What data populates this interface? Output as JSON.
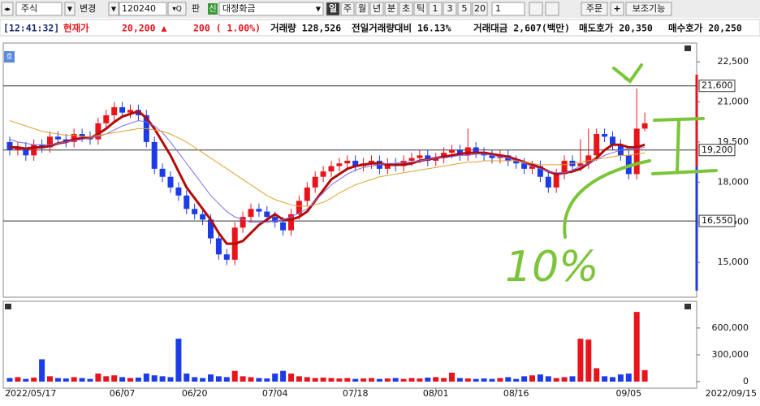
{
  "toolbar": {
    "market": "주식",
    "change": "변경",
    "code": "120240",
    "pan": "판",
    "sin": "신",
    "name": "대정화금",
    "periods": [
      "일",
      "주",
      "월",
      "년",
      "분",
      "초",
      "틱",
      "1",
      "3",
      "5",
      "20"
    ],
    "count": "1",
    "order": "주문",
    "aux": "보조기능"
  },
  "info": {
    "time": "[12:41:32]",
    "price_label": "현재가",
    "price": "20,200 ▲",
    "change": "200 ( 1.00%)",
    "volume": "거래량 128,526",
    "vol_ratio": "전일거래량대비 16.13%",
    "amount": "거래대금 2,607(백만)",
    "ask": "매도호가 20,350",
    "bid": "매수호가 20,250"
  },
  "chart_data": {
    "type": "candlestick",
    "up_color": "#e8141c",
    "down_color": "#1b3ce8",
    "categories": [
      "2022/05/17",
      null,
      null,
      null,
      null,
      null,
      null,
      null,
      null,
      null,
      null,
      null,
      null,
      null,
      "06/07",
      null,
      null,
      null,
      null,
      null,
      null,
      null,
      null,
      "06/20",
      null,
      null,
      null,
      null,
      null,
      null,
      null,
      null,
      null,
      "07/04",
      null,
      null,
      null,
      null,
      null,
      null,
      null,
      null,
      null,
      "07/18",
      null,
      null,
      null,
      null,
      null,
      null,
      null,
      null,
      null,
      "08/01",
      null,
      null,
      null,
      null,
      null,
      null,
      null,
      null,
      null,
      "08/16",
      null,
      null,
      null,
      null,
      null,
      null,
      null,
      null,
      null,
      null,
      null,
      null,
      null,
      "09/05",
      null,
      null
    ],
    "x_end_label": "2022/09/15",
    "open": [
      19500,
      19200,
      19300,
      19000,
      19400,
      19300,
      19700,
      19600,
      19500,
      19800,
      19700,
      19600,
      20200,
      20500,
      20800,
      20600,
      20700,
      20500,
      19500,
      18500,
      18200,
      17800,
      17500,
      17000,
      16800,
      16600,
      15900,
      15300,
      15100,
      16300,
      16700,
      17000,
      16900,
      16700,
      16500,
      16200,
      16800,
      17300,
      17800,
      18200,
      18400,
      18600,
      18700,
      18800,
      18600,
      18700,
      18800,
      18500,
      18700,
      18600,
      18800,
      18900,
      19000,
      18800,
      18900,
      19100,
      19200,
      19000,
      19300,
      19100,
      19000,
      18900,
      19000,
      18800,
      18700,
      18500,
      18600,
      18200,
      17800,
      18300,
      18800,
      18600,
      18700,
      19000,
      19800,
      19700,
      19400,
      19000,
      18300,
      20000
    ],
    "high": [
      19700,
      19500,
      19500,
      19600,
      19600,
      19900,
      19900,
      19800,
      20000,
      20000,
      19900,
      20400,
      20700,
      21000,
      21000,
      20900,
      20900,
      20700,
      19700,
      18700,
      18400,
      18000,
      17700,
      17200,
      17000,
      16800,
      16100,
      15500,
      16500,
      16900,
      17200,
      17200,
      17100,
      16900,
      16700,
      17000,
      17500,
      18000,
      18400,
      18600,
      18800,
      18900,
      19000,
      19000,
      18900,
      19000,
      19000,
      18900,
      18900,
      19000,
      19100,
      19200,
      19200,
      19100,
      19300,
      19400,
      19400,
      20000,
      19500,
      19300,
      19200,
      19200,
      19200,
      19000,
      18900,
      18800,
      18800,
      18400,
      18500,
      19000,
      19000,
      19600,
      20000,
      20000,
      20000,
      19900,
      19600,
      19200,
      21500,
      20600
    ],
    "low": [
      19000,
      19000,
      18800,
      18800,
      19100,
      19100,
      19400,
      19300,
      19300,
      19500,
      19400,
      19400,
      20000,
      20300,
      20400,
      20400,
      20300,
      19300,
      18300,
      18000,
      17600,
      17300,
      16800,
      16600,
      16400,
      15700,
      15100,
      14900,
      14900,
      16100,
      16500,
      16700,
      16500,
      16300,
      16000,
      16000,
      16600,
      17100,
      17600,
      18000,
      18200,
      18400,
      18500,
      18400,
      18400,
      18500,
      18300,
      18300,
      18400,
      18400,
      18600,
      18700,
      18600,
      18600,
      18700,
      18900,
      18800,
      18800,
      18900,
      18800,
      18700,
      18700,
      18600,
      18500,
      18300,
      18300,
      18000,
      17600,
      17600,
      18100,
      18400,
      18400,
      18500,
      18800,
      19500,
      19200,
      18800,
      18100,
      18100,
      19900
    ],
    "close": [
      19200,
      19300,
      19000,
      19400,
      19300,
      19700,
      19600,
      19500,
      19800,
      19700,
      19600,
      20200,
      20500,
      20800,
      20600,
      20700,
      20500,
      19500,
      18500,
      18200,
      17800,
      17500,
      17000,
      16800,
      16600,
      15900,
      15300,
      15100,
      16300,
      16700,
      17000,
      16900,
      16700,
      16500,
      16200,
      16800,
      17300,
      17800,
      18200,
      18400,
      18600,
      18700,
      18800,
      18600,
      18700,
      18800,
      18500,
      18700,
      18600,
      18800,
      18900,
      19000,
      18800,
      18900,
      19100,
      19200,
      19000,
      19300,
      19100,
      19000,
      18900,
      19000,
      18800,
      18700,
      18500,
      18600,
      18200,
      17800,
      18300,
      18800,
      18600,
      18700,
      19000,
      19800,
      19700,
      19400,
      19000,
      18300,
      20000,
      20200
    ],
    "volume": [
      40000,
      50000,
      30000,
      45000,
      250000,
      60000,
      40000,
      35000,
      50000,
      40000,
      30000,
      90000,
      60000,
      70000,
      50000,
      40000,
      45000,
      90000,
      70000,
      60000,
      50000,
      480000,
      90000,
      50000,
      40000,
      80000,
      60000,
      50000,
      120000,
      60000,
      50000,
      40000,
      35000,
      90000,
      120000,
      90000,
      60000,
      50000,
      40000,
      45000,
      40000,
      35000,
      40000,
      30000,
      35000,
      40000,
      30000,
      35000,
      40000,
      30000,
      40000,
      35000,
      45000,
      50000,
      40000,
      100000,
      40000,
      35000,
      30000,
      35000,
      30000,
      40000,
      50000,
      30000,
      60000,
      70000,
      80000,
      60000,
      40000,
      50000,
      60000,
      480000,
      470000,
      150000,
      60000,
      50000,
      80000,
      90000,
      780000,
      128526
    ],
    "series": [
      {
        "color": "#b40a0a",
        "width": 3,
        "values": [
          19300,
          19300,
          19250,
          19300,
          19300,
          19350,
          19450,
          19500,
          19600,
          19650,
          19650,
          19800,
          20000,
          20250,
          20450,
          20550,
          20650,
          20400,
          20000,
          19500,
          19000,
          18400,
          17800,
          17400,
          17000,
          16600,
          16100,
          15700,
          15700,
          15800,
          16100,
          16400,
          16600,
          16800,
          16600,
          16600,
          16700,
          16900,
          17300,
          17700,
          18100,
          18300,
          18500,
          18600,
          18650,
          18700,
          18700,
          18650,
          18650,
          18650,
          18700,
          18800,
          18850,
          18900,
          18950,
          19000,
          19050,
          19100,
          19100,
          19100,
          19050,
          19000,
          18950,
          18850,
          18750,
          18650,
          18550,
          18400,
          18300,
          18350,
          18400,
          18500,
          18700,
          18900,
          19200,
          19400,
          19400,
          19300,
          19300,
          19400
        ]
      },
      {
        "color": "#7c6ee8",
        "width": 1,
        "values": [
          19600,
          19500,
          19450,
          19400,
          19400,
          19400,
          19450,
          19500,
          19550,
          19600,
          19650,
          19700,
          19800,
          19950,
          20100,
          20200,
          20300,
          20250,
          20100,
          19850,
          19500,
          19100,
          18700,
          18300,
          17900,
          17500,
          17200,
          16900,
          16700,
          16600,
          16500,
          16500,
          16500,
          16550,
          16600,
          16700,
          16850,
          17000,
          17300,
          17600,
          17900,
          18100,
          18300,
          18450,
          18550,
          18600,
          18650,
          18700,
          18700,
          18750,
          18750,
          18800,
          18850,
          18900,
          18900,
          18950,
          19000,
          19000,
          19050,
          19050,
          19000,
          18950,
          18900,
          18800,
          18700,
          18600,
          18500,
          18400,
          18350,
          18350,
          18450,
          18600,
          18700,
          18850,
          19000,
          19100,
          19200,
          19250,
          19250,
          19300
        ]
      },
      {
        "color": "#e0a030",
        "width": 1,
        "values": [
          20300,
          20200,
          20100,
          20000,
          19900,
          19850,
          19800,
          19750,
          19750,
          19700,
          19700,
          19750,
          19800,
          19850,
          19900,
          19950,
          20000,
          20000,
          19950,
          19900,
          19800,
          19650,
          19500,
          19300,
          19100,
          18900,
          18700,
          18500,
          18300,
          18100,
          17900,
          17700,
          17500,
          17350,
          17250,
          17150,
          17100,
          17100,
          17150,
          17250,
          17400,
          17600,
          17750,
          17900,
          18000,
          18100,
          18200,
          18250,
          18300,
          18350,
          18400,
          18450,
          18500,
          18550,
          18600,
          18650,
          18700,
          18750,
          18750,
          18800,
          18800,
          18800,
          18800,
          18800,
          18750,
          18700,
          18650,
          18650,
          18650,
          18650,
          18700,
          18750,
          18800,
          18850,
          18900,
          18950,
          19000,
          19000,
          19050,
          19100
        ]
      }
    ],
    "ylim": [
      13730,
      23200
    ],
    "yticks": [
      {
        "value": 15000,
        "label": "15,000"
      },
      {
        "value": 16500,
        "label": "16,500"
      },
      {
        "value": 18000,
        "label": "18,000"
      },
      {
        "value": 19500,
        "label": "19,500"
      },
      {
        "value": 21000,
        "label": "21,000"
      },
      {
        "value": 22500,
        "label": "22,500"
      }
    ],
    "levels": [
      21600,
      19200,
      16550
    ],
    "level_labels": [
      "21,600",
      "19,200",
      "16,550"
    ],
    "vlim": [
      -73000,
      890000
    ],
    "vticks": [
      0,
      {
        "value": 300000,
        "label": "300,000"
      },
      {
        "value": 600000,
        "label": "600,000"
      }
    ],
    "annotation": "10%"
  }
}
